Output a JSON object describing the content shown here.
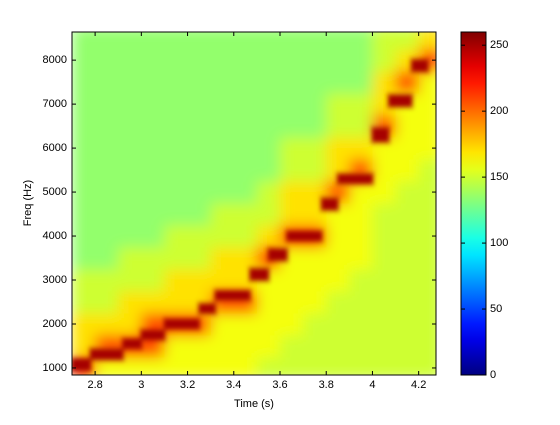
{
  "chart_data": {
    "type": "heatmap",
    "xlabel": "Time (s)",
    "ylabel": "Freq (Hz)",
    "xlim": [
      2.7,
      4.275
    ],
    "ylim": [
      840,
      8640
    ],
    "xticks": [
      2.8,
      3,
      3.2,
      3.4,
      3.6,
      3.8,
      4,
      4.2
    ],
    "yticks": [
      1000,
      2000,
      3000,
      4000,
      5000,
      6000,
      7000,
      8000
    ],
    "colormap": "jet",
    "clim": [
      0,
      260
    ],
    "cticks": [
      0,
      50,
      100,
      150,
      200,
      250
    ],
    "x_edges": [
      2.7,
      2.8,
      2.9,
      3.0,
      3.1,
      3.2,
      3.3,
      3.4,
      3.5,
      3.6,
      3.7,
      3.8,
      3.9,
      4.0,
      4.1,
      4.2,
      4.3
    ],
    "y_edges": [
      750,
      1250,
      1750,
      2250,
      2750,
      3250,
      3750,
      4250,
      4750,
      5250,
      5750,
      6250,
      6750,
      7250,
      7750,
      8250,
      8750
    ],
    "values": [
      [
        210,
        160,
        160,
        160,
        160,
        160,
        160,
        160,
        150,
        150,
        150,
        150,
        150,
        150,
        150,
        150
      ],
      [
        170,
        210,
        210,
        210,
        160,
        160,
        160,
        160,
        160,
        150,
        150,
        150,
        150,
        150,
        150,
        150
      ],
      [
        170,
        170,
        170,
        210,
        210,
        210,
        160,
        160,
        160,
        160,
        150,
        150,
        150,
        150,
        150,
        150
      ],
      [
        150,
        150,
        170,
        170,
        170,
        170,
        210,
        210,
        160,
        160,
        160,
        150,
        150,
        150,
        150,
        150
      ],
      [
        150,
        150,
        150,
        150,
        170,
        170,
        170,
        170,
        160,
        160,
        160,
        160,
        150,
        150,
        150,
        150
      ],
      [
        135,
        135,
        150,
        150,
        150,
        150,
        170,
        170,
        210,
        160,
        160,
        160,
        160,
        150,
        150,
        150
      ],
      [
        135,
        135,
        135,
        135,
        150,
        150,
        150,
        150,
        170,
        210,
        210,
        160,
        160,
        150,
        150,
        150
      ],
      [
        135,
        135,
        135,
        135,
        135,
        135,
        150,
        150,
        150,
        170,
        170,
        160,
        160,
        150,
        150,
        150
      ],
      [
        135,
        135,
        135,
        135,
        135,
        135,
        135,
        135,
        150,
        170,
        170,
        210,
        160,
        160,
        150,
        150
      ],
      [
        135,
        135,
        135,
        135,
        135,
        135,
        135,
        135,
        135,
        150,
        150,
        170,
        210,
        160,
        160,
        150
      ],
      [
        135,
        135,
        135,
        135,
        135,
        135,
        135,
        135,
        135,
        150,
        150,
        170,
        170,
        160,
        160,
        160
      ],
      [
        135,
        135,
        135,
        135,
        135,
        135,
        135,
        135,
        135,
        135,
        135,
        150,
        150,
        210,
        160,
        160
      ],
      [
        135,
        135,
        135,
        135,
        135,
        135,
        135,
        135,
        135,
        135,
        135,
        150,
        150,
        170,
        160,
        160
      ],
      [
        135,
        135,
        135,
        135,
        135,
        135,
        135,
        135,
        135,
        135,
        135,
        135,
        135,
        170,
        210,
        160
      ],
      [
        135,
        135,
        135,
        135,
        135,
        135,
        135,
        135,
        135,
        135,
        135,
        135,
        135,
        150,
        170,
        210
      ],
      [
        135,
        135,
        135,
        135,
        135,
        135,
        135,
        135,
        135,
        135,
        135,
        135,
        135,
        150,
        150,
        170
      ]
    ],
    "ridges": [
      {
        "x": [
          2.7,
          2.78
        ],
        "y": [
          950,
          1200
        ],
        "value": 250
      },
      {
        "x": [
          2.78,
          2.92
        ],
        "y": [
          1200,
          1420
        ],
        "value": 250
      },
      {
        "x": [
          2.92,
          3.0
        ],
        "y": [
          1450,
          1650
        ],
        "value": 250
      },
      {
        "x": [
          3.0,
          3.1
        ],
        "y": [
          1650,
          1850
        ],
        "value": 250
      },
      {
        "x": [
          3.1,
          3.25
        ],
        "y": [
          1900,
          2100
        ],
        "value": 250
      },
      {
        "x": [
          3.25,
          3.32
        ],
        "y": [
          2250,
          2450
        ],
        "value": 250
      },
      {
        "x": [
          3.32,
          3.47
        ],
        "y": [
          2550,
          2750
        ],
        "value": 250
      },
      {
        "x": [
          3.47,
          3.55
        ],
        "y": [
          3000,
          3250
        ],
        "value": 250
      },
      {
        "x": [
          3.55,
          3.63
        ],
        "y": [
          3450,
          3700
        ],
        "value": 250
      },
      {
        "x": [
          3.63,
          3.78
        ],
        "y": [
          3900,
          4100
        ],
        "value": 250
      },
      {
        "x": [
          3.78,
          3.85
        ],
        "y": [
          4600,
          4850
        ],
        "value": 250
      },
      {
        "x": [
          3.85,
          4.0
        ],
        "y": [
          5200,
          5400
        ],
        "value": 250
      },
      {
        "x": [
          4.0,
          4.07
        ],
        "y": [
          6150,
          6450
        ],
        "value": 250
      },
      {
        "x": [
          4.07,
          4.17
        ],
        "y": [
          6950,
          7200
        ],
        "value": 250
      },
      {
        "x": [
          4.17,
          4.24
        ],
        "y": [
          7750,
          8000
        ],
        "value": 250
      }
    ]
  }
}
